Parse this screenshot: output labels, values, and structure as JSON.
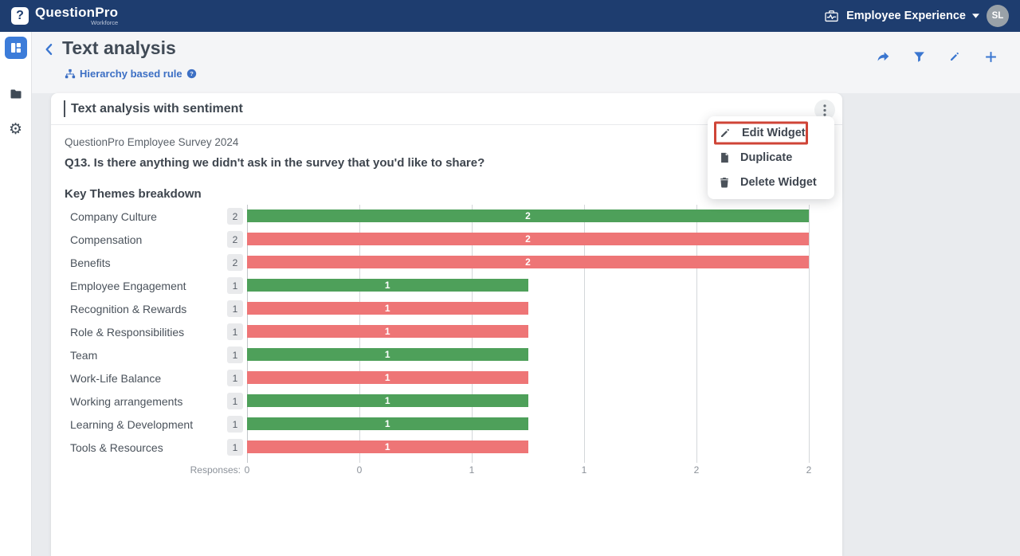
{
  "header": {
    "brand": {
      "name": "QuestionPro",
      "product": "Workforce",
      "logo_icon": "questionpro-logo"
    },
    "workspace": {
      "icon": "briefcase-pulse-icon",
      "label": "Employee Experience",
      "caret_icon": "caret-down-icon"
    },
    "user": {
      "avatar_initials": "SL"
    }
  },
  "sidebar": {
    "items": [
      {
        "id": "dashboard",
        "icon": "dashboard-grid-icon",
        "active": true
      },
      {
        "id": "folders",
        "icon": "folder-icon",
        "active": false
      },
      {
        "id": "settings",
        "icon": "gear-icon",
        "active": false
      }
    ]
  },
  "page": {
    "back_icon": "chevron-left-icon",
    "title": "Text analysis",
    "rule": {
      "icon": "hierarchy-icon",
      "label": "Hierarchy based rule",
      "help_icon": "question-circle-icon"
    },
    "toolbar": [
      {
        "id": "share",
        "icon": "share-icon"
      },
      {
        "id": "filter",
        "icon": "filter-icon"
      },
      {
        "id": "edit",
        "icon": "pencil-icon"
      },
      {
        "id": "add-widget",
        "icon": "plus-icon"
      }
    ]
  },
  "widget": {
    "title": "Text analysis with sentiment",
    "menu_button_icon": "kebab-vertical-icon",
    "survey_name": "QuestionPro Employee Survey 2024",
    "question": "Q13. Is there anything we didn't ask in the survey that you'd like to share?",
    "context_menu": {
      "highlight_color": "#cf4437",
      "items": [
        {
          "label": "Edit Widget",
          "icon": "pencil-icon",
          "highlighted": true
        },
        {
          "label": "Duplicate",
          "icon": "duplicate-icon",
          "highlighted": false
        },
        {
          "label": "Delete Widget",
          "icon": "trash-icon",
          "highlighted": false
        }
      ]
    }
  },
  "chart_data": {
    "type": "bar",
    "orientation": "horizontal",
    "title": "Key Themes breakdown",
    "categories": [
      "Company Culture",
      "Compensation",
      "Benefits",
      "Employee Engagement",
      "Recognition & Rewards",
      "Role & Responsibilities",
      "Team",
      "Work-Life Balance",
      "Working arrangements",
      "Learning & Development",
      "Tools & Resources"
    ],
    "values": [
      2,
      2,
      2,
      1,
      1,
      1,
      1,
      1,
      1,
      1,
      1
    ],
    "count_badges": [
      "2",
      "2",
      "2",
      "1",
      "1",
      "1",
      "1",
      "1",
      "1",
      "1",
      "1"
    ],
    "bar_value_labels": [
      "2",
      "2",
      "2",
      "1",
      "1",
      "1",
      "1",
      "1",
      "1",
      "1",
      "1"
    ],
    "sentiments": [
      "positive",
      "negative",
      "negative",
      "positive",
      "negative",
      "negative",
      "positive",
      "negative",
      "positive",
      "positive",
      "negative"
    ],
    "sentiment_colors": {
      "positive": "#4EA05A",
      "negative": "#EE7576"
    },
    "x_axis": {
      "caption": "Responses:",
      "min": 0,
      "max": 2,
      "tick_labels": [
        "0",
        "0",
        "1",
        "1",
        "2",
        "2"
      ],
      "grid": true
    },
    "legend": "none"
  },
  "colors": {
    "header_bg": "#1e3d6f",
    "accent_blue": "#3a76d0",
    "positive_green": "#4EA05A",
    "negative_red": "#EE7576",
    "page_bg": "#e9ebee",
    "pagehead_bg": "#f4f5f7"
  }
}
